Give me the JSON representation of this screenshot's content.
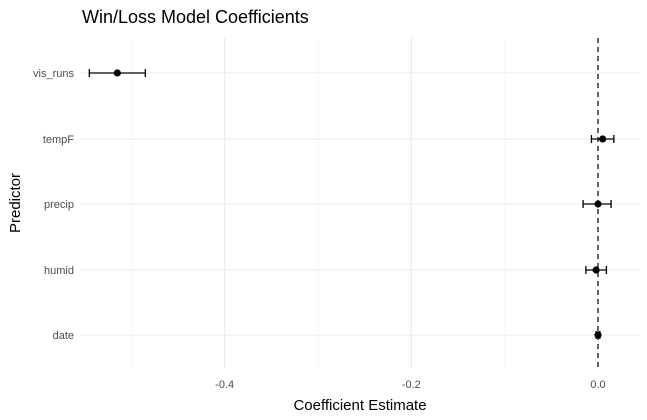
{
  "chart_data": {
    "type": "scatter",
    "title": "Win/Loss Model Coefficients",
    "xlabel": "Coefficient Estimate",
    "ylabel": "Predictor",
    "categories": [
      "vis_runs",
      "tempF",
      "precip",
      "humid",
      "date"
    ],
    "estimates": [
      -0.515,
      0.005,
      0.0,
      -0.002,
      0.0
    ],
    "ci_lower": [
      -0.545,
      -0.007,
      -0.016,
      -0.013,
      -0.002
    ],
    "ci_upper": [
      -0.485,
      0.017,
      0.014,
      0.009,
      0.002
    ],
    "xlim": [
      -0.555,
      0.045
    ],
    "x_ticks": [
      -0.4,
      -0.2,
      0.0
    ],
    "x_tick_labels": [
      "-0.4",
      "-0.2",
      "0.0"
    ],
    "reference_line": 0,
    "grid": true,
    "legend": "none"
  }
}
